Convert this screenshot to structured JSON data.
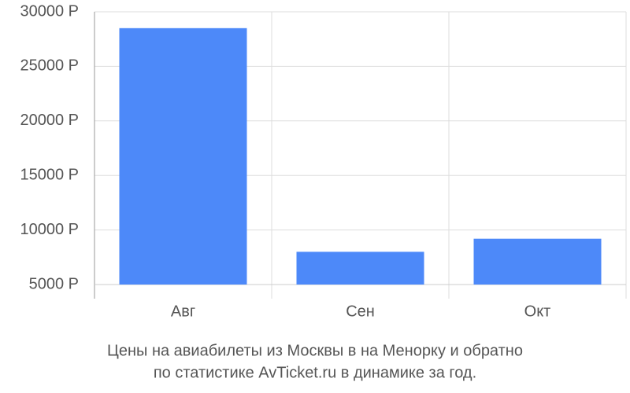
{
  "chart_data": {
    "type": "bar",
    "title": [
      "Цены на авиабилеты из Москвы в на Менорку и обратно",
      "по статистике AvTicket.ru в динамике за год."
    ],
    "categories": [
      "Авг",
      "Сен",
      "Окт"
    ],
    "values": [
      28500,
      8000,
      9200
    ],
    "color": "#4d89f9",
    "ylim": [
      5000,
      30000
    ],
    "yticks": [
      {
        "value": 5000,
        "label": "5000 Р"
      },
      {
        "value": 10000,
        "label": "10000 Р"
      },
      {
        "value": 15000,
        "label": "15000 Р"
      },
      {
        "value": 20000,
        "label": "20000 Р"
      },
      {
        "value": 25000,
        "label": "25000 Р"
      },
      {
        "value": 30000,
        "label": "30000 Р"
      }
    ],
    "grid": true
  }
}
